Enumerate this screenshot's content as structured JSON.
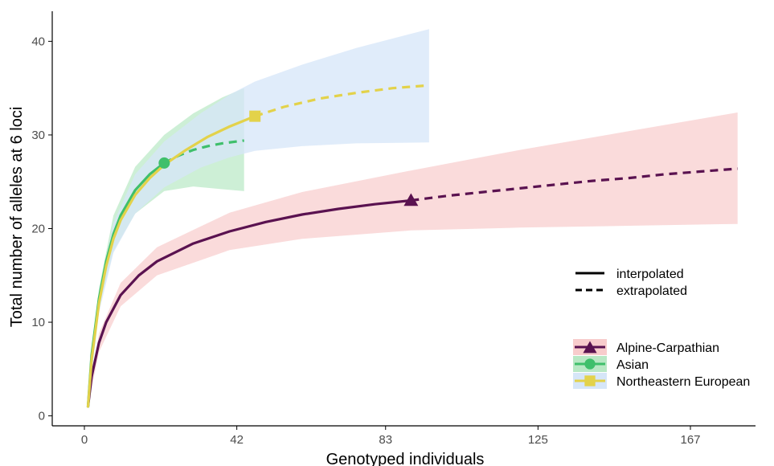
{
  "chart_data": {
    "type": "line",
    "title": "",
    "xlabel": "Genotyped individuals",
    "ylabel": "Total number of alleles at 6 loci",
    "x_ticks": [
      0,
      42,
      83,
      125,
      167
    ],
    "y_ticks": [
      0,
      10,
      20,
      30,
      40
    ],
    "xlim": [
      -4,
      185
    ],
    "ylim": [
      -1,
      43.5
    ],
    "grid": false,
    "legend_position": "right",
    "line_type_legend": [
      {
        "label": "interpolated",
        "style": "solid"
      },
      {
        "label": "extrapolated",
        "style": "dashed"
      }
    ],
    "series": [
      {
        "name": "Alpine-Carpathian",
        "color": "#5a1250",
        "ribbon_color": "#f8cccc",
        "marker": "triangle",
        "observed": {
          "x": 90,
          "y": 23
        },
        "interpolated": {
          "x": [
            1,
            2,
            4,
            6,
            10,
            15,
            20,
            30,
            40,
            50,
            60,
            70,
            80,
            90
          ],
          "y": [
            1,
            4.2,
            7.8,
            10.0,
            12.9,
            15.0,
            16.5,
            18.4,
            19.7,
            20.7,
            21.5,
            22.1,
            22.6,
            23.0
          ]
        },
        "extrapolated": {
          "x": [
            90,
            100,
            110,
            120,
            130,
            140,
            150,
            160,
            170,
            180
          ],
          "y": [
            23.0,
            23.5,
            23.9,
            24.3,
            24.7,
            25.1,
            25.4,
            25.8,
            26.1,
            26.4
          ]
        },
        "ci_x": [
          1,
          4,
          10,
          20,
          40,
          60,
          90,
          120,
          150,
          180
        ],
        "ci_lower": [
          1,
          6.8,
          11.7,
          15.0,
          17.7,
          18.9,
          19.8,
          20.1,
          20.3,
          20.5
        ],
        "ci_upper": [
          1,
          8.8,
          14.2,
          18.0,
          21.7,
          23.9,
          26.2,
          28.4,
          30.4,
          32.4
        ]
      },
      {
        "name": "Asian",
        "color": "#3fbf6b",
        "ribbon_color": "#b8e8c4",
        "marker": "circle",
        "observed": {
          "x": 22,
          "y": 27
        },
        "interpolated": {
          "x": [
            1,
            2,
            4,
            6,
            8,
            10,
            14,
            18,
            22
          ],
          "y": [
            1,
            6.5,
            12.5,
            16.5,
            19.4,
            21.4,
            24.1,
            25.8,
            27.0
          ]
        },
        "extrapolated": {
          "x": [
            22,
            26,
            30,
            34,
            38,
            42,
            44
          ],
          "y": [
            27.0,
            27.8,
            28.4,
            28.8,
            29.1,
            29.3,
            29.4
          ]
        },
        "ci_x": [
          1,
          4,
          8,
          14,
          22,
          30,
          38,
          44
        ],
        "ci_lower": [
          1,
          11.5,
          17.6,
          21.6,
          24.0,
          24.5,
          24.2,
          24.0
        ],
        "ci_upper": [
          1,
          13.6,
          21.4,
          26.6,
          30.0,
          32.3,
          34.0,
          35.0
        ]
      },
      {
        "name": "Northeastern European",
        "color": "#e3d24a",
        "ribbon_color": "#d6e6f8",
        "marker": "square",
        "observed": {
          "x": 47,
          "y": 32
        },
        "interpolated": {
          "x": [
            1,
            2,
            4,
            6,
            8,
            10,
            14,
            18,
            22,
            28,
            34,
            40,
            47
          ],
          "y": [
            1,
            6.0,
            12.0,
            16.0,
            18.9,
            20.9,
            23.6,
            25.4,
            26.8,
            28.4,
            29.8,
            30.9,
            32.0
          ]
        },
        "extrapolated": {
          "x": [
            47,
            55,
            65,
            75,
            85,
            95
          ],
          "y": [
            32.0,
            33.0,
            33.9,
            34.5,
            35.0,
            35.3
          ]
        },
        "ci_x": [
          1,
          4,
          8,
          14,
          22,
          32,
          40,
          47,
          60,
          75,
          95
        ],
        "ci_lower": [
          1,
          11.0,
          17.4,
          21.6,
          24.4,
          26.5,
          27.6,
          28.3,
          28.8,
          29.1,
          29.2
        ],
        "ci_upper": [
          1,
          13.0,
          20.6,
          25.8,
          29.3,
          32.3,
          34.3,
          35.7,
          37.5,
          39.3,
          41.3
        ]
      }
    ]
  }
}
